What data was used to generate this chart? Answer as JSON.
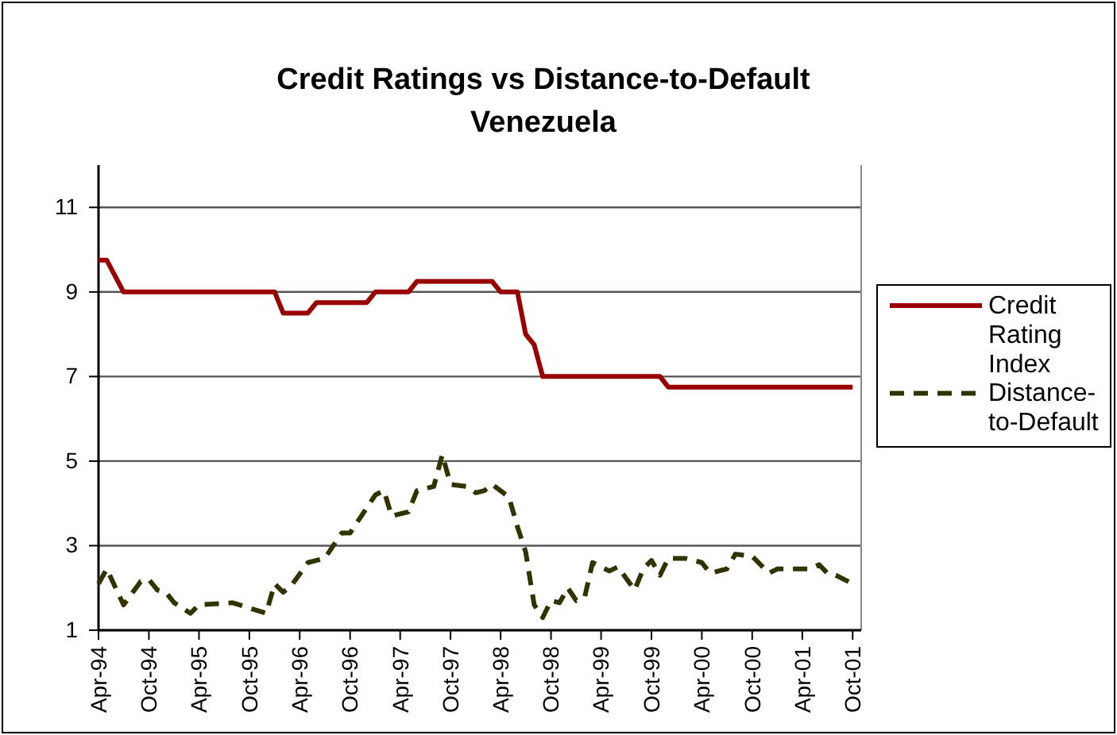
{
  "chart_data": {
    "type": "line",
    "title": "Credit Ratings vs Distance-to-Default",
    "subtitle": "Venezuela",
    "xlim": [
      "1994-04",
      "2001-11"
    ],
    "xticks": [
      {
        "value": "1994-04",
        "label": "Apr-94"
      },
      {
        "value": "1994-10",
        "label": "Oct-94"
      },
      {
        "value": "1995-04",
        "label": "Apr-95"
      },
      {
        "value": "1995-10",
        "label": "Oct-95"
      },
      {
        "value": "1996-04",
        "label": "Apr-96"
      },
      {
        "value": "1996-10",
        "label": "Oct-96"
      },
      {
        "value": "1997-04",
        "label": "Apr-97"
      },
      {
        "value": "1997-10",
        "label": "Oct-97"
      },
      {
        "value": "1998-04",
        "label": "Apr-98"
      },
      {
        "value": "1998-10",
        "label": "Oct-98"
      },
      {
        "value": "1999-04",
        "label": "Apr-99"
      },
      {
        "value": "1999-10",
        "label": "Oct-99"
      },
      {
        "value": "2000-04",
        "label": "Apr-00"
      },
      {
        "value": "2000-10",
        "label": "Oct-00"
      },
      {
        "value": "2001-04",
        "label": "Apr-01"
      },
      {
        "value": "2001-10",
        "label": "Oct-01"
      }
    ],
    "ylim": [
      1,
      12
    ],
    "yticks": [
      1,
      3,
      5,
      7,
      9,
      11
    ],
    "grid": "y",
    "legend": "right",
    "series": [
      {
        "name": "Credit Rating Index",
        "color": "#990000",
        "line_style": "solid",
        "x": [
          "1994-04",
          "1994-05",
          "1994-07",
          "1996-01",
          "1996-02",
          "1996-05",
          "1996-06",
          "1996-12",
          "1997-01",
          "1997-05",
          "1997-06",
          "1998-03",
          "1998-04",
          "1998-06",
          "1998-07",
          "1998-08",
          "1998-09",
          "1999-11",
          "1999-12",
          "2001-10"
        ],
        "values": [
          9.75,
          9.75,
          9,
          9,
          8.5,
          8.5,
          8.75,
          8.75,
          9,
          9,
          9.25,
          9.25,
          9,
          9,
          8,
          7.75,
          7,
          7,
          6.75,
          6.75
        ]
      },
      {
        "name": "Distance-to-Default",
        "color": "#333300",
        "line_style": "dashed",
        "x": [
          "1994-04",
          "1994-05",
          "1994-07",
          "1994-09",
          "1994-10",
          "1994-11",
          "1994-12",
          "1995-01",
          "1995-03",
          "1995-04",
          "1995-08",
          "1995-12",
          "1996-01",
          "1996-02",
          "1996-03",
          "1996-05",
          "1996-07",
          "1996-09",
          "1996-10",
          "1997-01",
          "1997-02",
          "1997-03",
          "1997-05",
          "1997-06",
          "1997-08",
          "1997-09",
          "1997-10",
          "1997-12",
          "1998-01",
          "1998-02",
          "1998-03",
          "1998-05",
          "1998-06",
          "1998-07",
          "1998-08",
          "1998-09",
          "1998-10",
          "1998-11",
          "1998-12",
          "1999-01",
          "1999-02",
          "1999-03",
          "1999-05",
          "1999-06",
          "1999-08",
          "1999-09",
          "1999-10",
          "1999-11",
          "1999-12",
          "2000-02",
          "2000-04",
          "2000-05",
          "2000-07",
          "2000-08",
          "2000-10",
          "2000-12",
          "2001-01",
          "2001-05",
          "2001-06",
          "2001-07",
          "2001-08",
          "2001-10"
        ],
        "values": [
          2.1,
          2.45,
          1.6,
          2.15,
          2.2,
          1.95,
          1.9,
          1.65,
          1.4,
          1.6,
          1.65,
          1.4,
          2.1,
          1.9,
          2.05,
          2.6,
          2.7,
          3.3,
          3.3,
          4.2,
          4.3,
          3.7,
          3.8,
          4.3,
          4.4,
          5.15,
          4.45,
          4.4,
          4.25,
          4.3,
          4.45,
          4.15,
          3.45,
          2.85,
          1.6,
          1.3,
          1.7,
          1.65,
          2.0,
          1.7,
          1.8,
          2.6,
          2.4,
          2.5,
          1.95,
          2.45,
          2.65,
          2.3,
          2.7,
          2.7,
          2.6,
          2.35,
          2.45,
          2.8,
          2.75,
          2.35,
          2.45,
          2.45,
          2.55,
          2.35,
          2.3,
          2.1
        ]
      }
    ]
  }
}
